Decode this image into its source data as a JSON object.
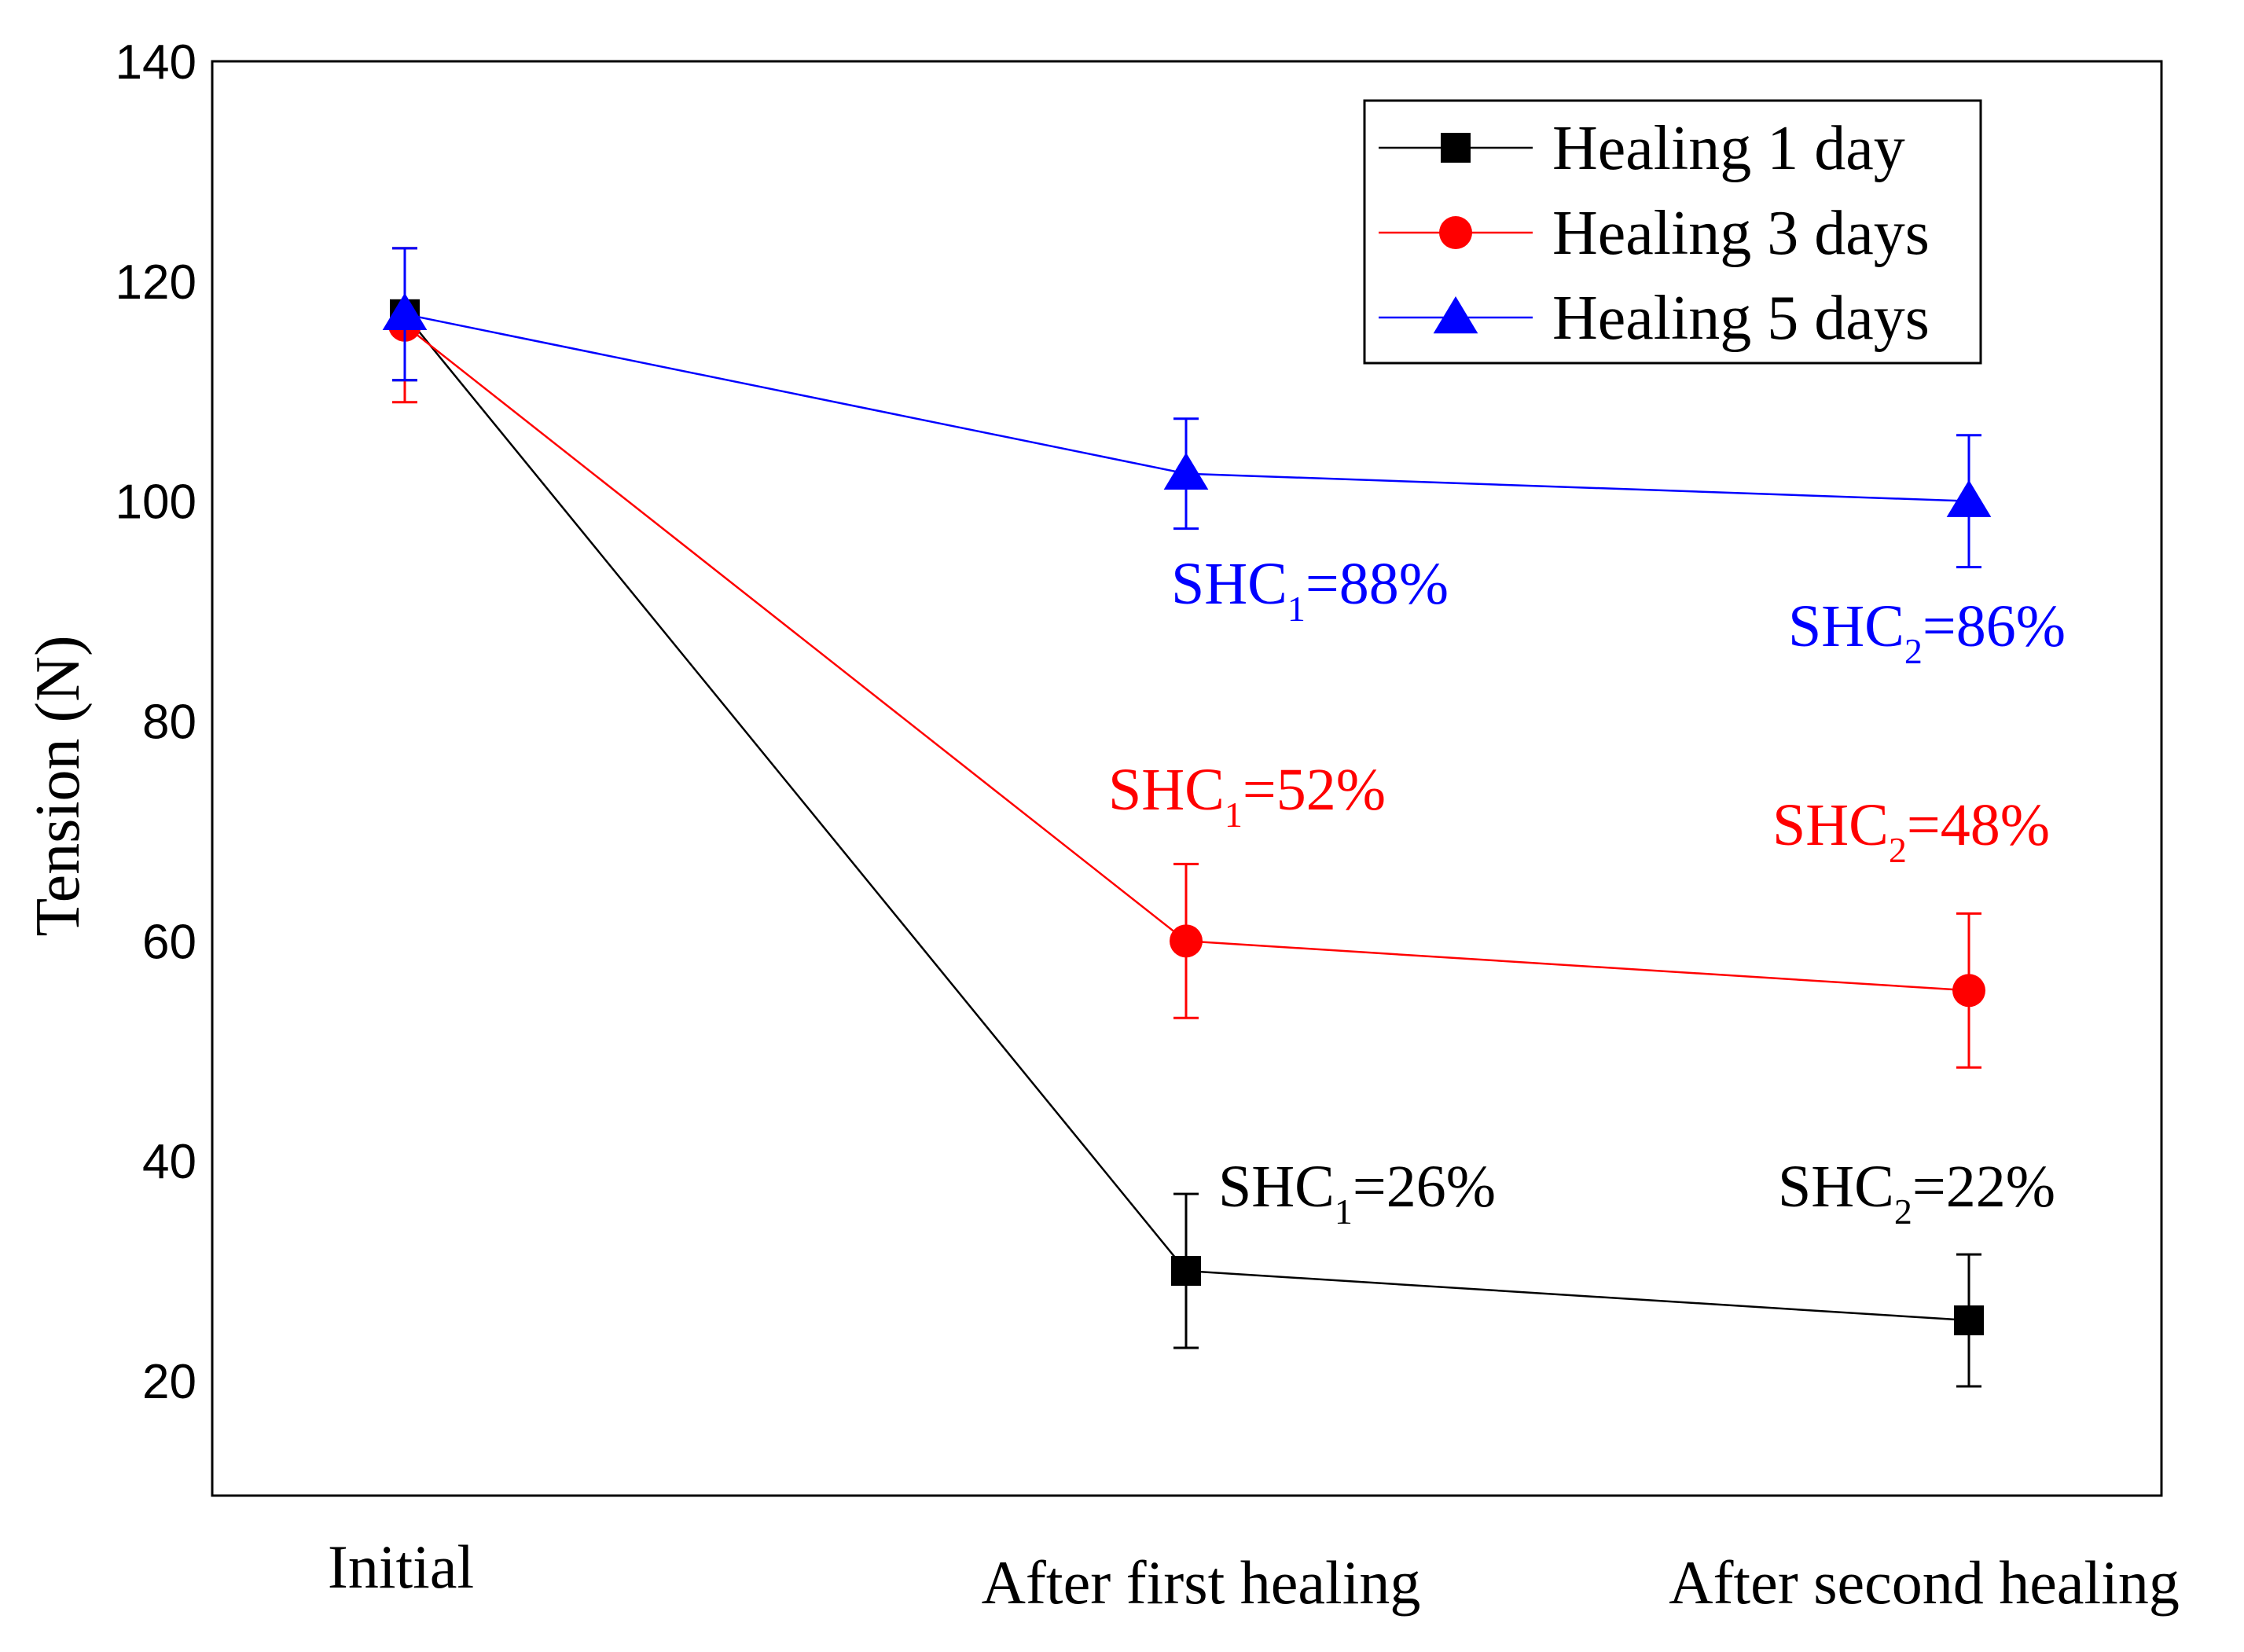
{
  "chart_data": {
    "type": "line",
    "title": "",
    "xlabel": "",
    "ylabel": "Tension (N)",
    "ylim": [
      10,
      140
    ],
    "yticks": [
      20,
      40,
      60,
      80,
      100,
      120,
      140
    ],
    "categories": [
      "Initial",
      "After first healing",
      "After second healing"
    ],
    "legend_position": "top-right",
    "series": [
      {
        "name": "Healing 1 day",
        "color": "#000000",
        "marker": "square",
        "values": [
          117,
          30,
          25.5
        ],
        "errors": [
          6,
          7,
          6
        ]
      },
      {
        "name": "Healing 3 days",
        "color": "#ff0000",
        "marker": "circle",
        "values": [
          116,
          60,
          55.5
        ],
        "errors": [
          7,
          7,
          7
        ]
      },
      {
        "name": "Healing 5 days",
        "color": "#0000ff",
        "marker": "triangle",
        "values": [
          117,
          102.5,
          100
        ],
        "errors": [
          6,
          5,
          6
        ]
      }
    ],
    "annotations": [
      {
        "series": 2,
        "category": 1,
        "main": "SHC",
        "sub": "1",
        "rest": "=88%"
      },
      {
        "series": 2,
        "category": 2,
        "main": "SHC",
        "sub": "2",
        "rest": "=86%"
      },
      {
        "series": 1,
        "category": 1,
        "main": "SHC",
        "sub": "1",
        "rest": "=52%"
      },
      {
        "series": 1,
        "category": 2,
        "main": "SHC",
        "sub": "2",
        "rest": "=48%"
      },
      {
        "series": 0,
        "category": 1,
        "main": "SHC",
        "sub": "1",
        "rest": "=26%"
      },
      {
        "series": 0,
        "category": 2,
        "main": "SHC",
        "sub": "2",
        "rest": "=22%"
      }
    ]
  }
}
